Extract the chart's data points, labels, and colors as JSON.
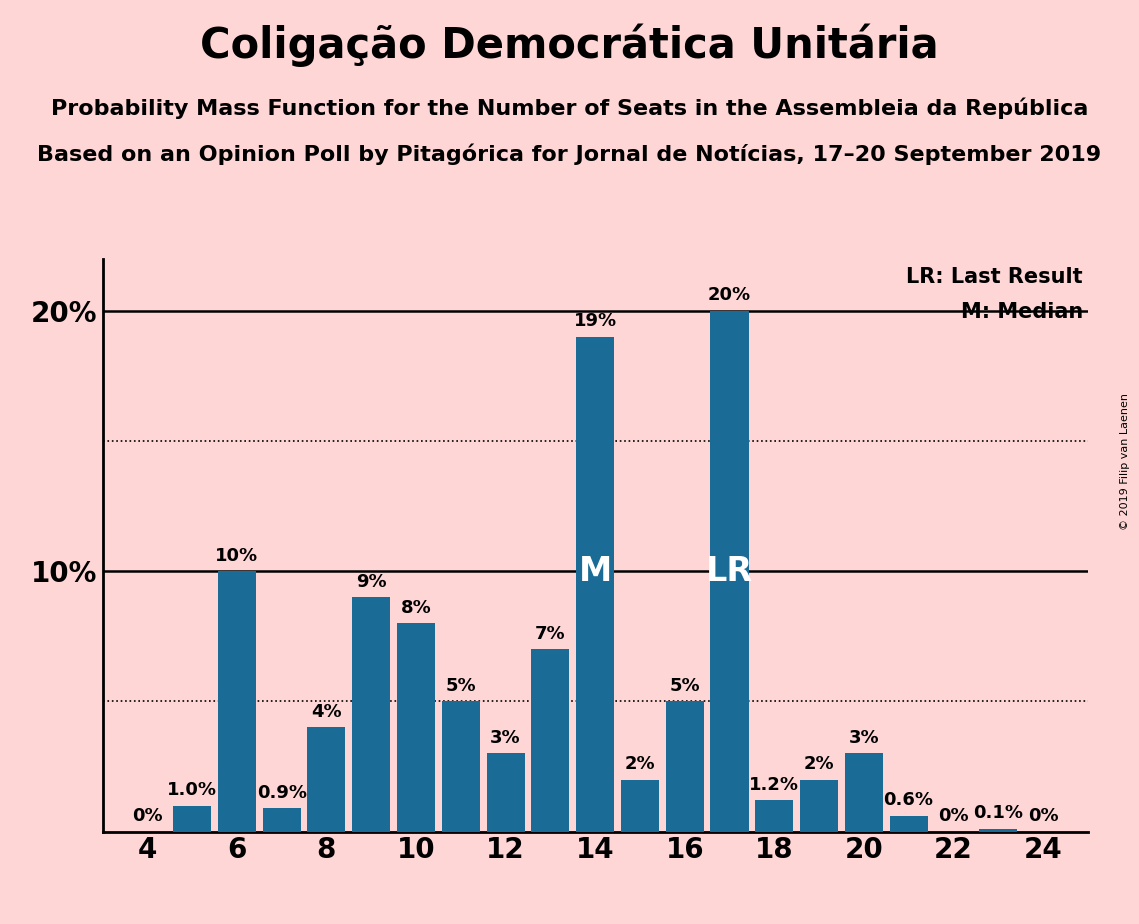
{
  "title": "Coligação Democrática Unitária",
  "subtitle1": "Probability Mass Function for the Number of Seats in the Assembleia da República",
  "subtitle2": "Based on an Opinion Poll by Pitagórica for Jornal de Notícias, 17–20 September 2019",
  "copyright": "© 2019 Filip van Laenen",
  "seats": [
    4,
    5,
    6,
    7,
    8,
    9,
    10,
    11,
    12,
    13,
    14,
    15,
    16,
    17,
    18,
    19,
    20,
    21,
    22,
    23,
    24
  ],
  "probabilities": [
    0.0,
    1.0,
    10.0,
    0.9,
    4.0,
    9.0,
    8.0,
    5.0,
    3.0,
    7.0,
    19.0,
    2.0,
    5.0,
    20.0,
    1.2,
    2.0,
    3.0,
    0.6,
    0.0,
    0.1,
    0.0
  ],
  "labels": [
    "0%",
    "1.0%",
    "10%",
    "0.9%",
    "4%",
    "9%",
    "8%",
    "5%",
    "3%",
    "7%",
    "19%",
    "2%",
    "5%",
    "20%",
    "1.2%",
    "2%",
    "3%",
    "0.6%",
    "0%",
    "0.1%",
    "0%"
  ],
  "bar_color": "#1a6b96",
  "background_color": "#ffd6d6",
  "median_seat": 14,
  "last_result_seat": 17,
  "ymax": 22,
  "xmin": 3,
  "xmax": 25,
  "title_fontsize": 30,
  "subtitle_fontsize": 16,
  "label_fontsize": 13,
  "axis_fontsize": 20,
  "solid_lines": [
    10,
    20
  ],
  "dotted_lines": [
    5,
    15
  ],
  "ytick_positions": [
    10,
    20
  ],
  "ytick_labels": [
    "10%",
    "20%"
  ],
  "xtick_positions": [
    4,
    6,
    8,
    10,
    12,
    14,
    16,
    18,
    20,
    22,
    24
  ]
}
